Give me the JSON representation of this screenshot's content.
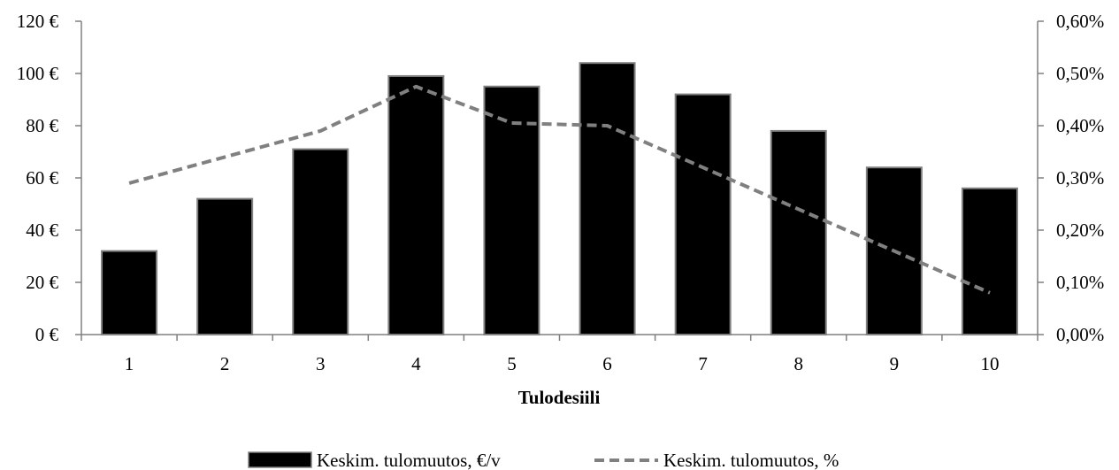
{
  "chart_data": {
    "type": "bar",
    "categories": [
      "1",
      "2",
      "3",
      "4",
      "5",
      "6",
      "7",
      "8",
      "9",
      "10"
    ],
    "series": [
      {
        "name": "Keskim. tulomuutos, €/v",
        "kind": "bar",
        "axis": "left",
        "values": [
          32,
          52,
          71,
          99,
          95,
          104,
          92,
          78,
          64,
          56
        ],
        "color": "#000000"
      },
      {
        "name": "Keskim. tulomuutos, %",
        "kind": "line",
        "axis": "right",
        "style": "dashed",
        "values": [
          0.29,
          0.34,
          0.39,
          0.475,
          0.405,
          0.4,
          0.32,
          0.24,
          0.16,
          0.08
        ],
        "color": "#808080"
      }
    ],
    "xlabel": "Tulodesiili",
    "ylim_left": [
      0,
      120
    ],
    "yticks_left": [
      "0 €",
      "20 €",
      "40 €",
      "60 €",
      "80 €",
      "100 €",
      "120 €"
    ],
    "ylim_right": [
      0,
      0.6
    ],
    "yticks_right": [
      "0,00%",
      "0,10%",
      "0,20%",
      "0,30%",
      "0,40%",
      "0,50%",
      "0,60%"
    ],
    "legend_position": "bottom-center",
    "grid": false
  }
}
